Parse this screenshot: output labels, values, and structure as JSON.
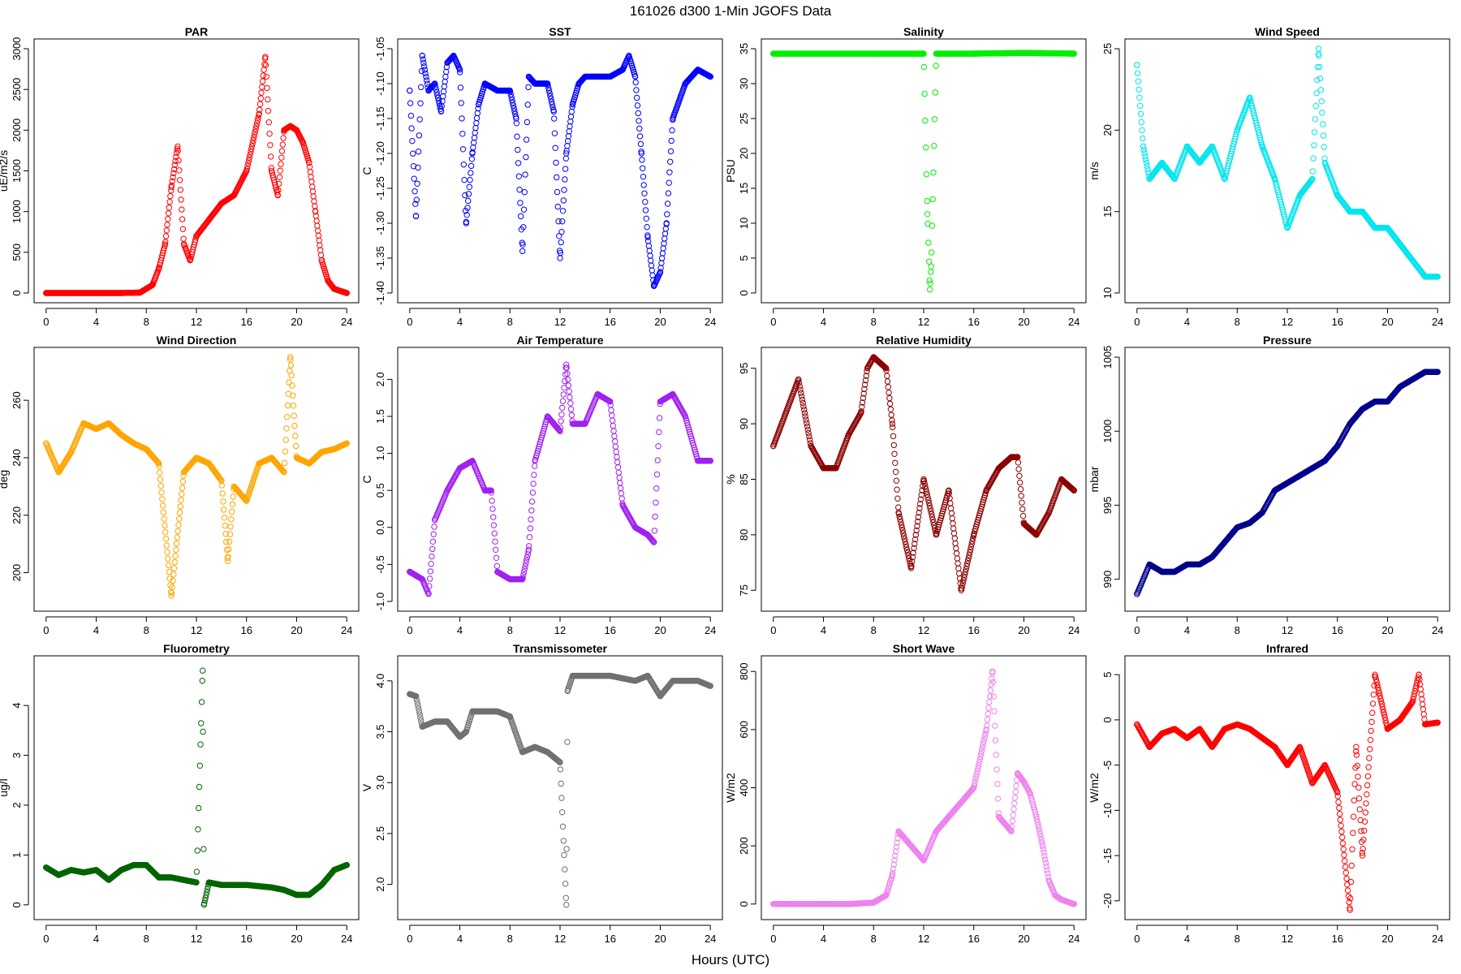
{
  "figure": {
    "title": "161026   d300   1-Min  JGOFS Data",
    "xlabel": "Hours (UTC)"
  },
  "chart_data": [
    {
      "type": "scatter",
      "title": "PAR",
      "ylabel": "uE/m2/s",
      "color": "#ff0000",
      "xlim": [
        0,
        24
      ],
      "ylim": [
        0,
        3000
      ],
      "xticks": [
        0,
        4,
        8,
        12,
        16,
        20,
        24
      ],
      "yticks": [
        0,
        500,
        1000,
        1500,
        2000,
        2500,
        3000
      ],
      "series": [
        {
          "x": [
            0,
            2,
            4,
            6,
            7.5,
            8.5,
            9,
            9.5,
            10,
            10.5,
            11,
            11.5,
            12,
            13,
            14,
            15,
            16,
            17,
            17.5,
            18,
            18.5,
            19,
            19.5,
            20,
            20.5,
            21,
            21.5,
            22,
            22.5,
            23,
            24
          ],
          "y": [
            0,
            0,
            0,
            0,
            5,
            100,
            300,
            600,
            1300,
            1800,
            600,
            400,
            700,
            900,
            1100,
            1200,
            1500,
            2200,
            2900,
            1500,
            1200,
            2000,
            2050,
            2000,
            1850,
            1600,
            1000,
            400,
            150,
            50,
            0
          ]
        }
      ]
    },
    {
      "type": "scatter",
      "title": "SST",
      "ylabel": "C",
      "color": "#0000ff",
      "xlim": [
        0,
        24
      ],
      "ylim": [
        -1.4,
        -1.05
      ],
      "xticks": [
        0,
        4,
        8,
        12,
        16,
        20,
        24
      ],
      "yticks": [
        -1.4,
        -1.35,
        -1.3,
        -1.25,
        -1.2,
        -1.15,
        -1.1,
        -1.05
      ],
      "series": [
        {
          "x": [
            0,
            0.5,
            1,
            1.5,
            2,
            2.5,
            3,
            3.5,
            4,
            4.5,
            5,
            5.5,
            6,
            7,
            8,
            8.5,
            9,
            9.5,
            10,
            11,
            11.5,
            12,
            12.5,
            13,
            13.5,
            14,
            15,
            16,
            17,
            17.5,
            18,
            18.5,
            19,
            19.5,
            20,
            20.5,
            21,
            22,
            23,
            24
          ],
          "y": [
            -1.11,
            -1.29,
            -1.06,
            -1.11,
            -1.1,
            -1.14,
            -1.07,
            -1.06,
            -1.08,
            -1.3,
            -1.2,
            -1.13,
            -1.1,
            -1.11,
            -1.11,
            -1.15,
            -1.34,
            -1.09,
            -1.1,
            -1.1,
            -1.14,
            -1.35,
            -1.2,
            -1.13,
            -1.1,
            -1.09,
            -1.09,
            -1.09,
            -1.08,
            -1.06,
            -1.09,
            -1.2,
            -1.32,
            -1.39,
            -1.37,
            -1.3,
            -1.15,
            -1.1,
            -1.08,
            -1.09
          ]
        }
      ]
    },
    {
      "type": "scatter",
      "title": "Salinity",
      "ylabel": "PSU",
      "color": "#00ee00",
      "xlim": [
        0,
        24
      ],
      "ylim": [
        0,
        35
      ],
      "xticks": [
        0,
        4,
        8,
        12,
        16,
        20,
        24
      ],
      "yticks": [
        0,
        5,
        10,
        15,
        20,
        25,
        30,
        35
      ],
      "series": [
        {
          "x": [
            0,
            4,
            8,
            12,
            12.3,
            12.5,
            12.6,
            13,
            16,
            20,
            24
          ],
          "y": [
            34.3,
            34.3,
            34.3,
            34.3,
            11.3,
            0.5,
            3.8,
            34.3,
            34.3,
            34.4,
            34.3
          ]
        }
      ]
    },
    {
      "type": "scatter",
      "title": "Wind Speed",
      "ylabel": "m/s",
      "color": "#00e5ee",
      "xlim": [
        0,
        24
      ],
      "ylim": [
        10,
        25
      ],
      "xticks": [
        0,
        4,
        8,
        12,
        16,
        20,
        24
      ],
      "yticks": [
        10,
        15,
        20,
        25
      ],
      "series": [
        {
          "x": [
            0,
            0.5,
            1,
            2,
            3,
            4,
            5,
            6,
            7,
            8,
            9,
            10,
            11,
            12,
            13,
            14,
            14.5,
            15,
            16,
            17,
            18,
            19,
            20,
            21,
            22,
            23,
            24
          ],
          "y": [
            24,
            19,
            17,
            18,
            17,
            19,
            18,
            19,
            17,
            20,
            22,
            19,
            17,
            14,
            16,
            17,
            25,
            18,
            16,
            15,
            15,
            14,
            14,
            13,
            12,
            11,
            11
          ]
        }
      ]
    },
    {
      "type": "scatter",
      "title": "Wind Direction",
      "ylabel": "deg",
      "color": "#ffa500",
      "xlim": [
        0,
        24
      ],
      "ylim": [
        190,
        275
      ],
      "xticks": [
        0,
        4,
        8,
        12,
        16,
        20,
        24
      ],
      "yticks": [
        200,
        220,
        240,
        260
      ],
      "series": [
        {
          "x": [
            0,
            1,
            2,
            3,
            4,
            5,
            6,
            7,
            8,
            9,
            10,
            11,
            12,
            13,
            14,
            14.5,
            15,
            16,
            17,
            18,
            19,
            19.5,
            20,
            21,
            22,
            23,
            24
          ],
          "y": [
            245,
            235,
            242,
            252,
            250,
            252,
            248,
            245,
            243,
            238,
            192,
            235,
            240,
            238,
            232,
            204,
            230,
            225,
            238,
            240,
            235,
            275,
            240,
            238,
            242,
            243,
            245
          ]
        }
      ]
    },
    {
      "type": "scatter",
      "title": "Air Temperature",
      "ylabel": "C",
      "color": "#a020f0",
      "xlim": [
        0,
        24
      ],
      "ylim": [
        -1,
        2.3
      ],
      "xticks": [
        0,
        4,
        8,
        12,
        16,
        20,
        24
      ],
      "yticks": [
        -1.0,
        -0.5,
        0.0,
        0.5,
        1.0,
        1.5,
        2.0
      ],
      "series": [
        {
          "x": [
            0,
            1,
            1.5,
            2,
            3,
            4,
            5,
            6,
            6.5,
            7,
            8,
            9,
            9.5,
            10,
            11,
            12,
            12.5,
            13,
            14,
            15,
            16,
            17,
            18,
            19,
            19.5,
            20,
            21,
            22,
            23,
            24
          ],
          "y": [
            -0.6,
            -0.7,
            -0.9,
            0.1,
            0.5,
            0.8,
            0.9,
            0.5,
            0.5,
            -0.6,
            -0.7,
            -0.7,
            -0.3,
            0.9,
            1.5,
            1.3,
            2.2,
            1.4,
            1.4,
            1.8,
            1.7,
            0.3,
            0.0,
            -0.1,
            -0.2,
            1.7,
            1.8,
            1.5,
            0.9,
            0.9
          ]
        }
      ]
    },
    {
      "type": "scatter",
      "title": "Relative Humidity",
      "ylabel": "%",
      "color": "#8b0000",
      "xlim": [
        0,
        24
      ],
      "ylim": [
        74,
        96
      ],
      "xticks": [
        0,
        4,
        8,
        12,
        16,
        20,
        24
      ],
      "yticks": [
        75,
        80,
        85,
        90,
        95
      ],
      "series": [
        {
          "x": [
            0,
            1,
            2,
            3,
            4,
            5,
            6,
            7,
            7.5,
            8,
            9,
            9.5,
            10,
            11,
            12,
            13,
            14,
            15,
            16,
            17,
            18,
            19,
            19.5,
            20,
            21,
            22,
            23,
            24
          ],
          "y": [
            88,
            91,
            94,
            88,
            86,
            86,
            89,
            91,
            95,
            96,
            95,
            90,
            82,
            77,
            85,
            80,
            84,
            75,
            80,
            84,
            86,
            87,
            87,
            81,
            80,
            82,
            85,
            84
          ]
        }
      ]
    },
    {
      "type": "scatter",
      "title": "Pressure",
      "ylabel": "mbar",
      "color": "#00008b",
      "xlim": [
        0,
        24
      ],
      "ylim": [
        988.5,
        1005
      ],
      "xticks": [
        0,
        4,
        8,
        12,
        16,
        20,
        24
      ],
      "yticks": [
        990,
        995,
        1000,
        1005
      ],
      "series": [
        {
          "x": [
            0,
            1,
            2,
            3,
            4,
            5,
            6,
            7,
            8,
            9,
            10,
            11,
            12,
            13,
            14,
            15,
            16,
            17,
            18,
            19,
            20,
            21,
            22,
            23,
            24
          ],
          "y": [
            989,
            991,
            990.5,
            990.5,
            991,
            991,
            991.5,
            992.5,
            993.5,
            993.8,
            994.5,
            996,
            996.5,
            997,
            997.5,
            998,
            999,
            1000.5,
            1001.5,
            1002,
            1002,
            1003,
            1003.5,
            1004,
            1004
          ]
        }
      ]
    },
    {
      "type": "scatter",
      "title": "Fluorometry",
      "ylabel": "ug/l",
      "color": "#006400",
      "xlim": [
        0,
        24
      ],
      "ylim": [
        -0.1,
        4.8
      ],
      "xticks": [
        0,
        4,
        8,
        12,
        16,
        20,
        24
      ],
      "yticks": [
        0,
        1,
        2,
        3,
        4
      ],
      "series": [
        {
          "x": [
            0,
            1,
            2,
            3,
            4,
            5,
            6,
            7,
            8,
            9,
            10,
            11,
            12,
            12.5,
            12.6,
            13,
            14,
            16,
            18,
            19,
            20,
            21,
            22,
            23,
            24
          ],
          "y": [
            0.75,
            0.6,
            0.7,
            0.65,
            0.7,
            0.5,
            0.7,
            0.8,
            0.8,
            0.55,
            0.55,
            0.5,
            0.45,
            4.7,
            0.0,
            0.45,
            0.4,
            0.4,
            0.35,
            0.3,
            0.2,
            0.2,
            0.4,
            0.7,
            0.8
          ]
        }
      ]
    },
    {
      "type": "scatter",
      "title": "Transmissometer",
      "ylabel": "V",
      "color": "#707070",
      "xlim": [
        0,
        24
      ],
      "ylim": [
        1.75,
        4.15
      ],
      "xticks": [
        0,
        4,
        8,
        12,
        16,
        20,
        24
      ],
      "yticks": [
        2.0,
        2.5,
        3.0,
        3.5,
        4.0
      ],
      "series": [
        {
          "x": [
            0,
            0.5,
            1,
            2,
            3,
            4,
            4.5,
            5,
            6,
            7,
            8,
            9,
            10,
            11,
            12,
            12.5,
            12.6,
            13,
            14,
            16,
            18,
            19,
            20,
            21,
            22,
            23,
            24
          ],
          "y": [
            3.87,
            3.85,
            3.55,
            3.6,
            3.6,
            3.45,
            3.5,
            3.7,
            3.7,
            3.7,
            3.65,
            3.3,
            3.35,
            3.3,
            3.2,
            1.8,
            3.9,
            4.05,
            4.05,
            4.05,
            4.0,
            4.05,
            3.85,
            4.0,
            4.0,
            4.0,
            3.95
          ]
        }
      ]
    },
    {
      "type": "scatter",
      "title": "Short Wave",
      "ylabel": "W/m2",
      "color": "#ee82ee",
      "xlim": [
        0,
        24
      ],
      "ylim": [
        -20,
        820
      ],
      "xticks": [
        0,
        4,
        8,
        12,
        16,
        20,
        24
      ],
      "yticks": [
        0,
        200,
        400,
        600,
        800
      ],
      "series": [
        {
          "x": [
            0,
            2,
            4,
            6,
            8,
            9,
            9.5,
            10,
            11,
            12,
            13,
            14,
            15,
            16,
            17,
            17.5,
            18,
            19,
            19.5,
            20,
            20.5,
            21,
            21.5,
            22,
            22.5,
            23,
            24
          ],
          "y": [
            0,
            0,
            0,
            0,
            5,
            30,
            100,
            250,
            200,
            150,
            250,
            300,
            350,
            400,
            600,
            800,
            300,
            250,
            450,
            420,
            380,
            300,
            200,
            80,
            30,
            15,
            0
          ]
        }
      ]
    },
    {
      "type": "scatter",
      "title": "Infrared",
      "ylabel": "W/m2",
      "color": "#ff0000",
      "xlim": [
        0,
        24
      ],
      "ylim": [
        -21,
        6
      ],
      "xticks": [
        0,
        4,
        8,
        12,
        16,
        20,
        24
      ],
      "yticks": [
        -20,
        -15,
        -10,
        -5,
        0,
        5
      ],
      "series": [
        {
          "x": [
            0,
            1,
            2,
            3,
            4,
            5,
            6,
            7,
            8,
            9,
            10,
            11,
            12,
            13,
            14,
            15,
            16,
            17,
            17.5,
            18,
            19,
            20,
            21,
            22,
            22.5,
            23,
            24
          ],
          "y": [
            -0.5,
            -3,
            -1.5,
            -1,
            -2,
            -1,
            -3,
            -1,
            -0.5,
            -1,
            -2,
            -3,
            -5,
            -3,
            -7,
            -5,
            -8,
            -21,
            -3,
            -15,
            5,
            -1,
            0,
            2,
            5,
            -0.5,
            -0.3
          ]
        }
      ]
    }
  ]
}
